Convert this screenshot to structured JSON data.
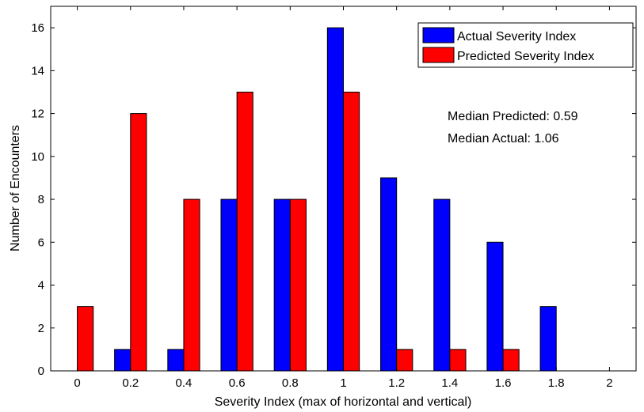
{
  "chart_data": {
    "type": "bar",
    "title": "",
    "xlabel": "Severity Index (max of horizontal and vertical)",
    "ylabel": "Number of Encounters",
    "x": [
      0,
      0.2,
      0.4,
      0.6,
      0.8,
      1,
      1.2,
      1.4,
      1.6,
      1.8,
      2
    ],
    "x_tick_labels": [
      "0",
      "0.2",
      "0.4",
      "0.6",
      "0.8",
      "1",
      "1.2",
      "1.4",
      "1.6",
      "1.8",
      "2"
    ],
    "xlim": [
      -0.1,
      2.1
    ],
    "ylim": [
      0,
      17
    ],
    "y_ticks": [
      0,
      2,
      4,
      6,
      8,
      10,
      12,
      14,
      16
    ],
    "y_tick_labels": [
      "0",
      "2",
      "4",
      "6",
      "8",
      "10",
      "12",
      "14",
      "16"
    ],
    "series": [
      {
        "name": "Actual Severity Index",
        "color": "#0000ff",
        "values": [
          0,
          1,
          1,
          8,
          8,
          16,
          9,
          8,
          6,
          3,
          0
        ]
      },
      {
        "name": "Predicted Severity Index",
        "color": "#ff0000",
        "values": [
          3,
          12,
          8,
          13,
          8,
          13,
          1,
          1,
          1,
          0,
          0
        ]
      }
    ],
    "legend_position": "top-right",
    "annotations": [
      "Median Predicted: 0.59",
      "Median Actual: 1.06"
    ],
    "grid": false
  }
}
